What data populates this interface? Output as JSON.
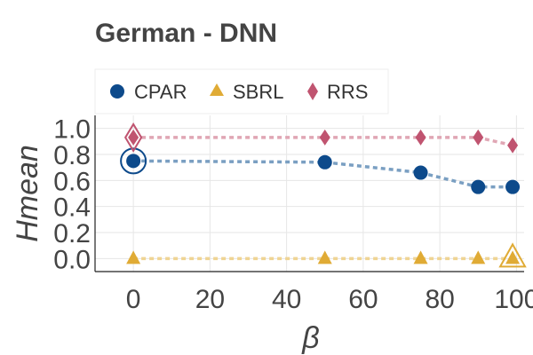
{
  "chart_data": {
    "type": "line",
    "title": "German - DNN",
    "xlabel": "β",
    "ylabel": "Hmean",
    "xlim": [
      -10,
      102
    ],
    "ylim": [
      -0.1,
      1.1
    ],
    "xticks": [
      0,
      20,
      40,
      60,
      80,
      100
    ],
    "yticks": [
      0.0,
      0.2,
      0.4,
      0.6,
      0.8,
      1.0
    ],
    "xtick_labels": [
      "0",
      "20",
      "40",
      "60",
      "80",
      "100"
    ],
    "ytick_labels": [
      "0.0",
      "0.2",
      "0.4",
      "0.6",
      "0.8",
      "1.0"
    ],
    "grid": true,
    "legend_position": "top",
    "series": [
      {
        "name": "CPAR",
        "marker": "circle",
        "color": "#0d4a8b",
        "line_color": "#7a9fc2",
        "x": [
          0,
          50,
          75,
          90,
          99
        ],
        "y": [
          0.75,
          0.74,
          0.66,
          0.55,
          0.55
        ],
        "highlight_x": 0
      },
      {
        "name": "SBRL",
        "marker": "triangle",
        "color": "#e0ab35",
        "line_color": "#efd493",
        "x": [
          0,
          50,
          75,
          90,
          99
        ],
        "y": [
          0.0,
          0.0,
          0.0,
          0.0,
          0.0
        ],
        "highlight_x": 99
      },
      {
        "name": "RRS",
        "marker": "diamond",
        "color": "#c05470",
        "line_color": "#e0a6b4",
        "x": [
          0,
          50,
          75,
          90,
          99
        ],
        "y": [
          0.93,
          0.93,
          0.93,
          0.93,
          0.87
        ],
        "highlight_x": 0
      }
    ]
  }
}
